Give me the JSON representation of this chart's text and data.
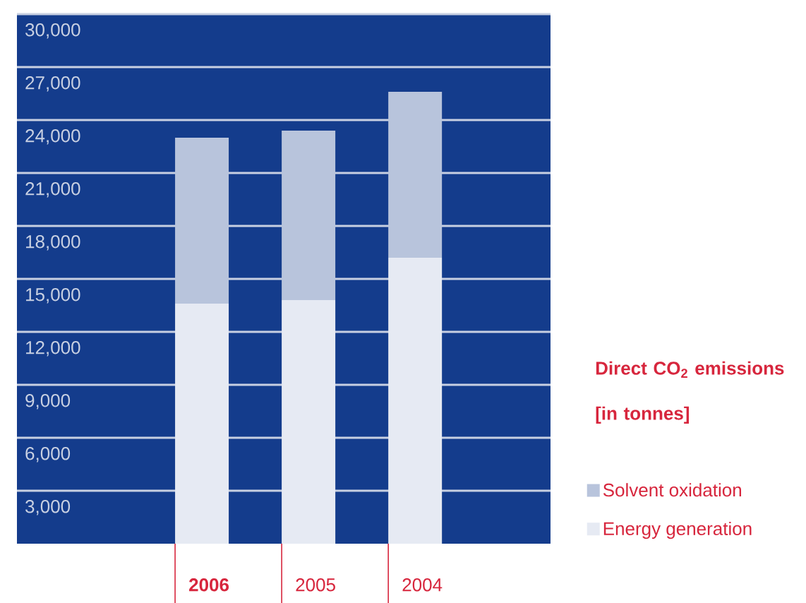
{
  "chart_data": {
    "type": "bar",
    "stacked": true,
    "legend_title": "Direct CO$_{2}$ emissions [in tonnes]",
    "categories": [
      "2006",
      "2005",
      "2004"
    ],
    "series": [
      {
        "name": "Energy generation",
        "color": "#e6eaf3",
        "values": [
          13600,
          13800,
          16200
        ]
      },
      {
        "name": "Solvent oxidation",
        "color": "#b8c4dc",
        "values": [
          9400,
          9600,
          9400
        ]
      }
    ],
    "ylim": [
      0,
      30000
    ],
    "yticks": [
      {
        "value": 3000,
        "label": "3,000"
      },
      {
        "value": 6000,
        "label": "6,000"
      },
      {
        "value": 9000,
        "label": "9,000"
      },
      {
        "value": 12000,
        "label": "12,000"
      },
      {
        "value": 15000,
        "label": "15,000"
      },
      {
        "value": 18000,
        "label": "18,000"
      },
      {
        "value": 21000,
        "label": "21,000"
      },
      {
        "value": 24000,
        "label": "24,000"
      },
      {
        "value": 27000,
        "label": "27,000"
      },
      {
        "value": 30000,
        "label": "30,000"
      }
    ],
    "grid": "y",
    "legend": "right"
  }
}
